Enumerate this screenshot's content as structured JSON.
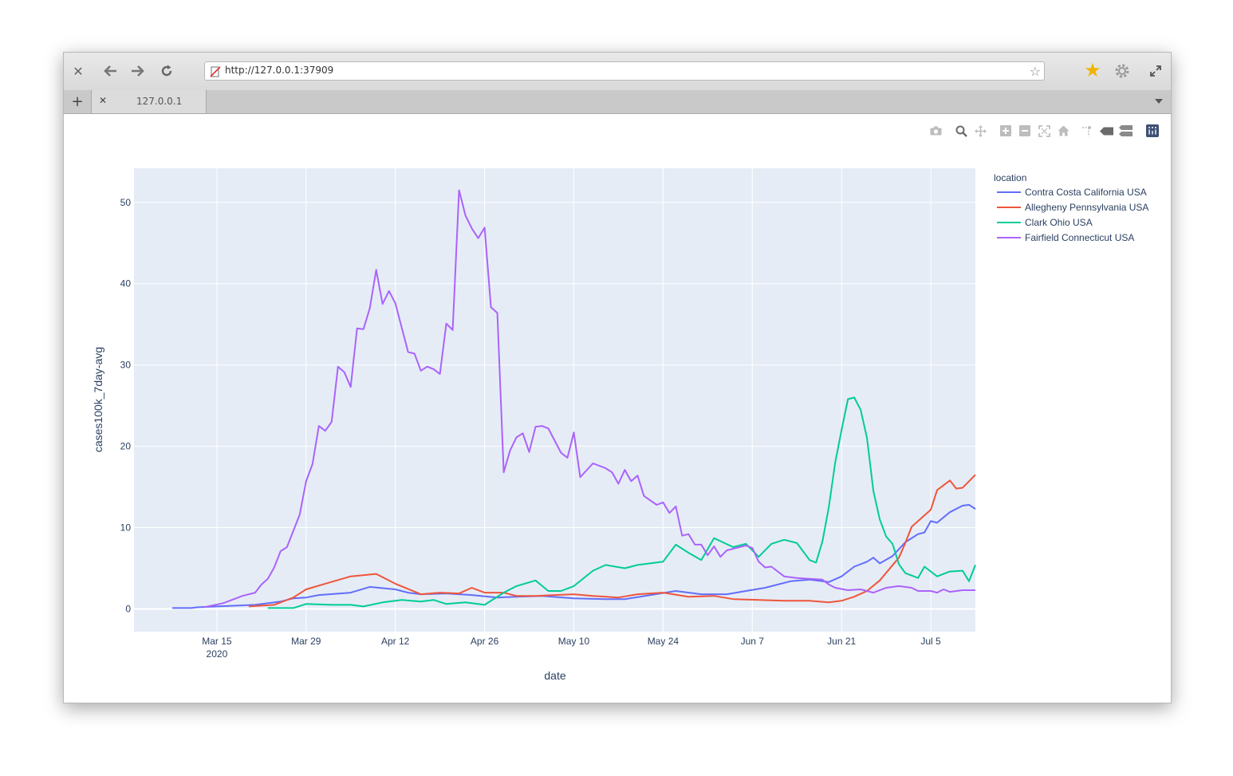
{
  "browser": {
    "url": "http://127.0.0.1:37909",
    "tab_title": "127.0.0.1",
    "icons": [
      "close-icon",
      "back-icon",
      "forward-icon",
      "reload-icon",
      "insecure-icon",
      "bookmark-star-icon",
      "favorites-star-icon",
      "settings-gear-icon",
      "fullscreen-icon",
      "new-tab-icon",
      "tab-close-icon",
      "tab-menu-icon"
    ]
  },
  "modebar": {
    "icons": [
      "camera-icon",
      "zoom-icon",
      "pan-icon",
      "zoom-in-icon",
      "zoom-out-icon",
      "autoscale-icon",
      "reset-axes-icon",
      "spike-lines-icon",
      "hover-closest-icon",
      "hover-compare-icon",
      "plotly-logo-icon"
    ]
  },
  "chart_data": {
    "type": "line",
    "xlabel": "date",
    "ylabel": "cases100k_7day-avg",
    "legend_title": "location",
    "legend_position": "top-right",
    "grid": true,
    "xlim": [
      "2020-03-02",
      "2020-07-12"
    ],
    "ylim": [
      -2.8,
      54.2
    ],
    "x_ticks": [
      {
        "date": "2020-03-15",
        "label": "Mar 15",
        "sublabel": "2020"
      },
      {
        "date": "2020-03-29",
        "label": "Mar 29",
        "sublabel": ""
      },
      {
        "date": "2020-04-12",
        "label": "Apr 12",
        "sublabel": ""
      },
      {
        "date": "2020-04-26",
        "label": "Apr 26",
        "sublabel": ""
      },
      {
        "date": "2020-05-10",
        "label": "May 10",
        "sublabel": ""
      },
      {
        "date": "2020-05-24",
        "label": "May 24",
        "sublabel": ""
      },
      {
        "date": "2020-06-07",
        "label": "Jun 7",
        "sublabel": ""
      },
      {
        "date": "2020-06-21",
        "label": "Jun 21",
        "sublabel": ""
      },
      {
        "date": "2020-07-05",
        "label": "Jul 5",
        "sublabel": ""
      }
    ],
    "y_ticks": [
      0,
      10,
      20,
      30,
      40,
      50
    ],
    "series": [
      {
        "name": "Contra Costa California USA",
        "color": "#636efa",
        "points": [
          [
            "2020-03-08",
            0.1
          ],
          [
            "2020-03-11",
            0.1
          ],
          [
            "2020-03-12",
            0.2
          ],
          [
            "2020-03-15",
            0.3
          ],
          [
            "2020-03-18",
            0.4
          ],
          [
            "2020-03-21",
            0.5
          ],
          [
            "2020-03-25",
            0.9
          ],
          [
            "2020-03-27",
            1.3
          ],
          [
            "2020-03-29",
            1.4
          ],
          [
            "2020-03-31",
            1.7
          ],
          [
            "2020-04-05",
            2.0
          ],
          [
            "2020-04-08",
            2.7
          ],
          [
            "2020-04-12",
            2.4
          ],
          [
            "2020-04-14",
            2.0
          ],
          [
            "2020-04-16",
            1.8
          ],
          [
            "2020-04-20",
            1.9
          ],
          [
            "2020-04-24",
            1.7
          ],
          [
            "2020-04-28",
            1.4
          ],
          [
            "2020-05-01",
            1.5
          ],
          [
            "2020-05-05",
            1.6
          ],
          [
            "2020-05-10",
            1.3
          ],
          [
            "2020-05-15",
            1.2
          ],
          [
            "2020-05-18",
            1.2
          ],
          [
            "2020-05-22",
            1.7
          ],
          [
            "2020-05-26",
            2.2
          ],
          [
            "2020-05-30",
            1.8
          ],
          [
            "2020-06-03",
            1.8
          ],
          [
            "2020-06-06",
            2.2
          ],
          [
            "2020-06-09",
            2.6
          ],
          [
            "2020-06-13",
            3.4
          ],
          [
            "2020-06-16",
            3.6
          ],
          [
            "2020-06-19",
            3.3
          ],
          [
            "2020-06-21",
            4.0
          ],
          [
            "2020-06-23",
            5.2
          ],
          [
            "2020-06-25",
            5.8
          ],
          [
            "2020-06-26",
            6.3
          ],
          [
            "2020-06-27",
            5.6
          ],
          [
            "2020-06-29",
            6.5
          ],
          [
            "2020-07-01",
            8.2
          ],
          [
            "2020-07-03",
            9.2
          ],
          [
            "2020-07-04",
            9.4
          ],
          [
            "2020-07-05",
            10.8
          ],
          [
            "2020-07-06",
            10.6
          ],
          [
            "2020-07-08",
            11.9
          ],
          [
            "2020-07-10",
            12.7
          ],
          [
            "2020-07-11",
            12.8
          ],
          [
            "2020-07-12",
            12.3
          ]
        ]
      },
      {
        "name": "Allegheny Pennsylvania USA",
        "color": "#ef553b",
        "points": [
          [
            "2020-03-20",
            0.3
          ],
          [
            "2020-03-24",
            0.5
          ],
          [
            "2020-03-27",
            1.4
          ],
          [
            "2020-03-29",
            2.4
          ],
          [
            "2020-04-01",
            3.1
          ],
          [
            "2020-04-05",
            4.0
          ],
          [
            "2020-04-09",
            4.3
          ],
          [
            "2020-04-12",
            3.1
          ],
          [
            "2020-04-16",
            1.8
          ],
          [
            "2020-04-19",
            2.0
          ],
          [
            "2020-04-22",
            1.9
          ],
          [
            "2020-04-24",
            2.6
          ],
          [
            "2020-04-26",
            2.0
          ],
          [
            "2020-04-29",
            2.0
          ],
          [
            "2020-05-01",
            1.6
          ],
          [
            "2020-05-04",
            1.6
          ],
          [
            "2020-05-07",
            1.7
          ],
          [
            "2020-05-10",
            1.8
          ],
          [
            "2020-05-13",
            1.6
          ],
          [
            "2020-05-17",
            1.4
          ],
          [
            "2020-05-20",
            1.8
          ],
          [
            "2020-05-24",
            2.0
          ],
          [
            "2020-05-28",
            1.5
          ],
          [
            "2020-06-01",
            1.6
          ],
          [
            "2020-06-04",
            1.2
          ],
          [
            "2020-06-08",
            1.1
          ],
          [
            "2020-06-12",
            1.0
          ],
          [
            "2020-06-16",
            1.0
          ],
          [
            "2020-06-19",
            0.8
          ],
          [
            "2020-06-21",
            1.0
          ],
          [
            "2020-06-23",
            1.5
          ],
          [
            "2020-06-25",
            2.2
          ],
          [
            "2020-06-27",
            3.5
          ],
          [
            "2020-06-30",
            6.3
          ],
          [
            "2020-07-01",
            8.1
          ],
          [
            "2020-07-02",
            10.1
          ],
          [
            "2020-07-04",
            11.5
          ],
          [
            "2020-07-05",
            12.2
          ],
          [
            "2020-07-06",
            14.6
          ],
          [
            "2020-07-08",
            15.8
          ],
          [
            "2020-07-09",
            14.8
          ],
          [
            "2020-07-10",
            14.9
          ],
          [
            "2020-07-12",
            16.5
          ]
        ]
      },
      {
        "name": "Clark Ohio USA",
        "color": "#00cc96",
        "points": [
          [
            "2020-03-23",
            0.1
          ],
          [
            "2020-03-27",
            0.1
          ],
          [
            "2020-03-29",
            0.6
          ],
          [
            "2020-04-02",
            0.5
          ],
          [
            "2020-04-05",
            0.5
          ],
          [
            "2020-04-07",
            0.3
          ],
          [
            "2020-04-10",
            0.8
          ],
          [
            "2020-04-13",
            1.1
          ],
          [
            "2020-04-16",
            0.9
          ],
          [
            "2020-04-18",
            1.1
          ],
          [
            "2020-04-20",
            0.6
          ],
          [
            "2020-04-23",
            0.8
          ],
          [
            "2020-04-26",
            0.5
          ],
          [
            "2020-04-29",
            2.0
          ],
          [
            "2020-05-01",
            2.8
          ],
          [
            "2020-05-04",
            3.5
          ],
          [
            "2020-05-06",
            2.2
          ],
          [
            "2020-05-08",
            2.2
          ],
          [
            "2020-05-10",
            2.8
          ],
          [
            "2020-05-13",
            4.7
          ],
          [
            "2020-05-15",
            5.4
          ],
          [
            "2020-05-18",
            5.0
          ],
          [
            "2020-05-20",
            5.4
          ],
          [
            "2020-05-24",
            5.8
          ],
          [
            "2020-05-26",
            7.9
          ],
          [
            "2020-05-28",
            6.9
          ],
          [
            "2020-05-30",
            6.0
          ],
          [
            "2020-06-01",
            8.7
          ],
          [
            "2020-06-04",
            7.6
          ],
          [
            "2020-06-06",
            8.0
          ],
          [
            "2020-06-08",
            6.4
          ],
          [
            "2020-06-10",
            8.0
          ],
          [
            "2020-06-12",
            8.5
          ],
          [
            "2020-06-14",
            8.1
          ],
          [
            "2020-06-16",
            6.0
          ],
          [
            "2020-06-17",
            5.7
          ],
          [
            "2020-06-18",
            8.3
          ],
          [
            "2020-06-19",
            12.5
          ],
          [
            "2020-06-20",
            18.0
          ],
          [
            "2020-06-21",
            22.0
          ],
          [
            "2020-06-22",
            25.8
          ],
          [
            "2020-06-23",
            26.0
          ],
          [
            "2020-06-24",
            24.5
          ],
          [
            "2020-06-25",
            21.0
          ],
          [
            "2020-06-26",
            14.5
          ],
          [
            "2020-06-27",
            11.0
          ],
          [
            "2020-06-28",
            8.9
          ],
          [
            "2020-06-29",
            8.0
          ],
          [
            "2020-06-30",
            5.5
          ],
          [
            "2020-07-01",
            4.4
          ],
          [
            "2020-07-03",
            3.8
          ],
          [
            "2020-07-04",
            5.2
          ],
          [
            "2020-07-06",
            4.0
          ],
          [
            "2020-07-08",
            4.6
          ],
          [
            "2020-07-10",
            4.7
          ],
          [
            "2020-07-11",
            3.4
          ],
          [
            "2020-07-12",
            5.4
          ]
        ]
      },
      {
        "name": "Fairfield Connecticut USA",
        "color": "#ab63fa",
        "points": [
          [
            "2020-03-13",
            0.2
          ],
          [
            "2020-03-16",
            0.7
          ],
          [
            "2020-03-19",
            1.6
          ],
          [
            "2020-03-21",
            2.0
          ],
          [
            "2020-03-22",
            3.0
          ],
          [
            "2020-03-23",
            3.7
          ],
          [
            "2020-03-24",
            5.1
          ],
          [
            "2020-03-25",
            7.1
          ],
          [
            "2020-03-26",
            7.6
          ],
          [
            "2020-03-28",
            11.6
          ],
          [
            "2020-03-29",
            15.7
          ],
          [
            "2020-03-30",
            17.8
          ],
          [
            "2020-03-31",
            22.5
          ],
          [
            "2020-04-01",
            21.9
          ],
          [
            "2020-04-02",
            23.0
          ],
          [
            "2020-04-03",
            29.8
          ],
          [
            "2020-04-04",
            29.1
          ],
          [
            "2020-04-05",
            27.3
          ],
          [
            "2020-04-06",
            34.5
          ],
          [
            "2020-04-07",
            34.4
          ],
          [
            "2020-04-08",
            37.0
          ],
          [
            "2020-04-09",
            41.7
          ],
          [
            "2020-04-10",
            37.5
          ],
          [
            "2020-04-11",
            39.1
          ],
          [
            "2020-04-12",
            37.6
          ],
          [
            "2020-04-14",
            31.6
          ],
          [
            "2020-04-15",
            31.4
          ],
          [
            "2020-04-16",
            29.3
          ],
          [
            "2020-04-17",
            29.8
          ],
          [
            "2020-04-18",
            29.5
          ],
          [
            "2020-04-19",
            28.9
          ],
          [
            "2020-04-20",
            35.1
          ],
          [
            "2020-04-21",
            34.3
          ],
          [
            "2020-04-22",
            51.5
          ],
          [
            "2020-04-23",
            48.4
          ],
          [
            "2020-04-24",
            46.8
          ],
          [
            "2020-04-25",
            45.6
          ],
          [
            "2020-04-26",
            46.9
          ],
          [
            "2020-04-27",
            37.1
          ],
          [
            "2020-04-28",
            36.4
          ],
          [
            "2020-04-29",
            16.8
          ],
          [
            "2020-04-30",
            19.5
          ],
          [
            "2020-05-01",
            21.1
          ],
          [
            "2020-05-02",
            21.6
          ],
          [
            "2020-05-03",
            19.3
          ],
          [
            "2020-05-04",
            22.4
          ],
          [
            "2020-05-05",
            22.5
          ],
          [
            "2020-05-06",
            22.2
          ],
          [
            "2020-05-07",
            20.7
          ],
          [
            "2020-05-08",
            19.2
          ],
          [
            "2020-05-09",
            18.6
          ],
          [
            "2020-05-10",
            21.7
          ],
          [
            "2020-05-11",
            16.2
          ],
          [
            "2020-05-13",
            17.9
          ],
          [
            "2020-05-15",
            17.3
          ],
          [
            "2020-05-16",
            16.8
          ],
          [
            "2020-05-17",
            15.4
          ],
          [
            "2020-05-18",
            17.1
          ],
          [
            "2020-05-19",
            15.7
          ],
          [
            "2020-05-20",
            16.4
          ],
          [
            "2020-05-21",
            13.9
          ],
          [
            "2020-05-23",
            12.8
          ],
          [
            "2020-05-24",
            13.1
          ],
          [
            "2020-05-25",
            11.8
          ],
          [
            "2020-05-26",
            12.6
          ],
          [
            "2020-05-27",
            9.0
          ],
          [
            "2020-05-28",
            9.2
          ],
          [
            "2020-05-29",
            7.9
          ],
          [
            "2020-05-30",
            7.9
          ],
          [
            "2020-05-31",
            6.6
          ],
          [
            "2020-06-01",
            7.7
          ],
          [
            "2020-06-02",
            6.4
          ],
          [
            "2020-06-03",
            7.2
          ],
          [
            "2020-06-05",
            7.6
          ],
          [
            "2020-06-06",
            7.8
          ],
          [
            "2020-06-07",
            7.5
          ],
          [
            "2020-06-08",
            5.8
          ],
          [
            "2020-06-09",
            5.1
          ],
          [
            "2020-06-10",
            5.2
          ],
          [
            "2020-06-12",
            4.0
          ],
          [
            "2020-06-14",
            3.8
          ],
          [
            "2020-06-16",
            3.7
          ],
          [
            "2020-06-18",
            3.6
          ],
          [
            "2020-06-19",
            3.0
          ],
          [
            "2020-06-20",
            2.6
          ],
          [
            "2020-06-22",
            2.3
          ],
          [
            "2020-06-24",
            2.4
          ],
          [
            "2020-06-26",
            2.0
          ],
          [
            "2020-06-28",
            2.6
          ],
          [
            "2020-06-30",
            2.8
          ],
          [
            "2020-07-02",
            2.6
          ],
          [
            "2020-07-03",
            2.2
          ],
          [
            "2020-07-05",
            2.2
          ],
          [
            "2020-07-06",
            2.0
          ],
          [
            "2020-07-07",
            2.4
          ],
          [
            "2020-07-08",
            2.1
          ],
          [
            "2020-07-10",
            2.3
          ],
          [
            "2020-07-12",
            2.3
          ]
        ]
      }
    ]
  }
}
